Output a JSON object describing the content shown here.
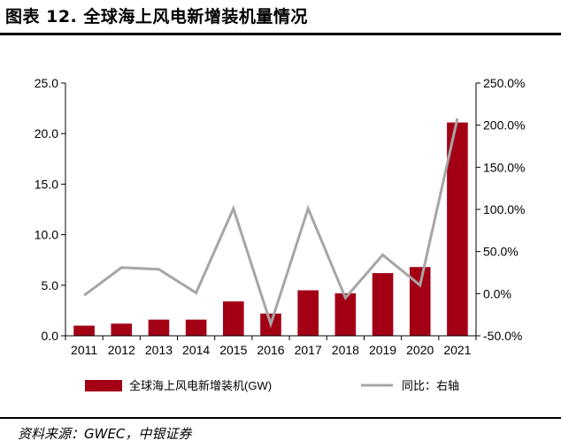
{
  "title": "图表 12. 全球海上风电新增装机量情况",
  "source": "资料来源：GWEC，中银证券",
  "colors": {
    "bar": "#a30016",
    "line": "#a6a6a6",
    "axis": "#000000"
  },
  "chart_data": {
    "type": "bar",
    "categories": [
      "2011",
      "2012",
      "2013",
      "2014",
      "2015",
      "2016",
      "2017",
      "2018",
      "2019",
      "2020",
      "2021"
    ],
    "series": [
      {
        "name": "全球海上风电新增装机(GW)",
        "type": "bar",
        "axis": "left",
        "values": [
          1.0,
          1.2,
          1.6,
          1.6,
          3.4,
          2.2,
          4.5,
          4.2,
          6.2,
          6.8,
          21.1
        ]
      },
      {
        "name": "同比：右轴",
        "type": "line",
        "axis": "right",
        "values": [
          -2,
          31,
          29,
          1,
          101,
          -36,
          101,
          -5,
          46,
          10,
          208
        ]
      }
    ],
    "y_left": {
      "min": 0,
      "max": 25,
      "ticks": [
        "0.0",
        "5.0",
        "10.0",
        "15.0",
        "20.0",
        "25.0"
      ]
    },
    "y_right": {
      "min": -50,
      "max": 250,
      "ticks": [
        "-50.0%",
        "0.0%",
        "50.0%",
        "100.0%",
        "150.0%",
        "200.0%",
        "250.0%"
      ]
    },
    "legend_position": "bottom",
    "grid": false
  }
}
